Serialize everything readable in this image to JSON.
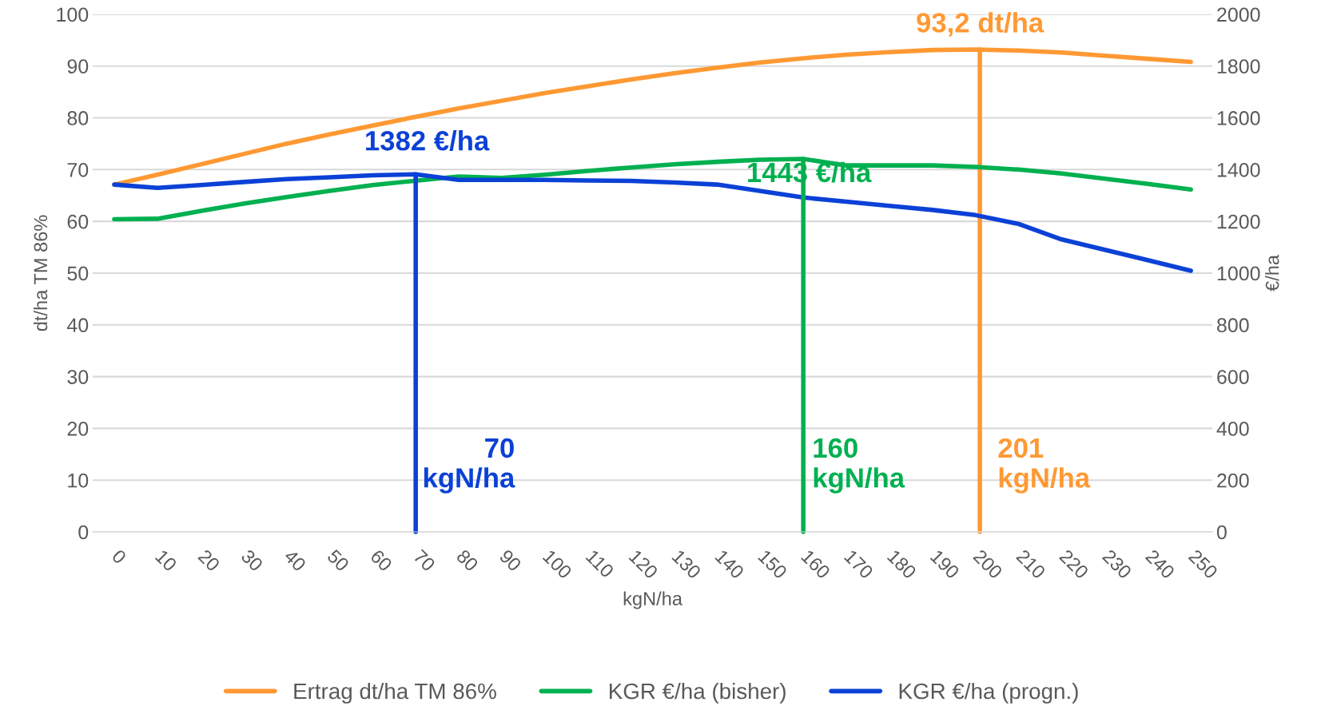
{
  "chart_data": {
    "type": "line",
    "xlabel": "kgN/ha",
    "ylabel": "dt/ha TM 86%",
    "y2label": "€/ha",
    "xlim": [
      -5,
      255
    ],
    "xticks": [
      0,
      10,
      20,
      30,
      40,
      50,
      60,
      70,
      80,
      90,
      100,
      110,
      120,
      130,
      140,
      150,
      160,
      170,
      180,
      190,
      200,
      210,
      220,
      230,
      240,
      250
    ],
    "ylim": [
      0,
      100
    ],
    "yticks": [
      0,
      10,
      20,
      30,
      40,
      50,
      60,
      70,
      80,
      90,
      100
    ],
    "y2lim": [
      0,
      2000
    ],
    "y2ticks": [
      0,
      200,
      400,
      600,
      800,
      1000,
      1200,
      1400,
      1600,
      1800,
      2000
    ],
    "grid": "y",
    "legend": "bottom",
    "line_style": "solid",
    "marker": "none",
    "series": [
      {
        "name": "Ertrag dt/ha TM 86%",
        "color": "#ff9933",
        "x": [
          0,
          10,
          20,
          30,
          40,
          50,
          60,
          70,
          80,
          90,
          100,
          110,
          120,
          130,
          140,
          150,
          160,
          170,
          180,
          190,
          200,
          210,
          220,
          230,
          240,
          250
        ],
        "values": [
          67.1,
          69,
          71,
          73,
          75,
          76.8,
          78.5,
          80.2,
          81.8,
          83.3,
          84.8,
          86.1,
          87.4,
          88.6,
          89.7,
          90.7,
          91.5,
          92.2,
          92.7,
          93.1,
          93.2,
          93.0,
          92.6,
          92.0,
          91.4,
          90.8
        ]
      },
      {
        "name": "KGR €/ha (bisher)",
        "color": "#00b050",
        "axis": "y2",
        "x": [
          0,
          10,
          20,
          30,
          40,
          50,
          60,
          70,
          80,
          90,
          100,
          110,
          120,
          130,
          140,
          150,
          160,
          170,
          180,
          190,
          200,
          210,
          220,
          230,
          240,
          250
        ],
        "values": [
          1208,
          1210,
          1240,
          1268,
          1294,
          1318,
          1340,
          1357,
          1373,
          1368,
          1380,
          1395,
          1408,
          1420,
          1430,
          1438,
          1441,
          1416,
          1416,
          1416,
          1410,
          1400,
          1385,
          1365,
          1345,
          1323
        ]
      },
      {
        "name": "KGR €/ha (progn.)",
        "color": "#0b41d6",
        "axis": "y2",
        "x": [
          0,
          10,
          20,
          30,
          40,
          50,
          60,
          70,
          80,
          90,
          100,
          110,
          120,
          130,
          140,
          160,
          170,
          180,
          190,
          200,
          210,
          220,
          230,
          240,
          250
        ],
        "values": [
          1342,
          1329,
          1340,
          1352,
          1363,
          1370,
          1378,
          1382,
          1360,
          1360,
          1360,
          1358,
          1356,
          1350,
          1342,
          1292,
          1276,
          1260,
          1244,
          1224,
          1190,
          1130,
          1090,
          1050,
          1009
        ]
      },
      {
        "color": "#0b41d6",
        "axis": "y2",
        "x": [
          70,
          70
        ],
        "values": [
          0,
          1382
        ]
      },
      {
        "color": "#00b050",
        "axis": "y2",
        "x": [
          160,
          160
        ],
        "values": [
          0,
          1441
        ]
      },
      {
        "color": "#ff9933",
        "x": [
          201,
          201
        ],
        "values": [
          0,
          93.2
        ]
      }
    ],
    "annotations": [
      {
        "text": "1382 €/ha",
        "x": 70,
        "y": 69.1
      },
      {
        "text": "1443 €/ha",
        "x": 160,
        "y": 72.2
      },
      {
        "text": "93,2 dt/ha",
        "x": 201,
        "y": 93.2
      },
      {
        "text": "70\nkgN/ha",
        "x": 70,
        "y": 0
      },
      {
        "text": "160\nkgN/ha",
        "x": 160,
        "y": 0
      },
      {
        "text": "201\nkgN/ha",
        "x": 201,
        "y": 0
      }
    ]
  }
}
